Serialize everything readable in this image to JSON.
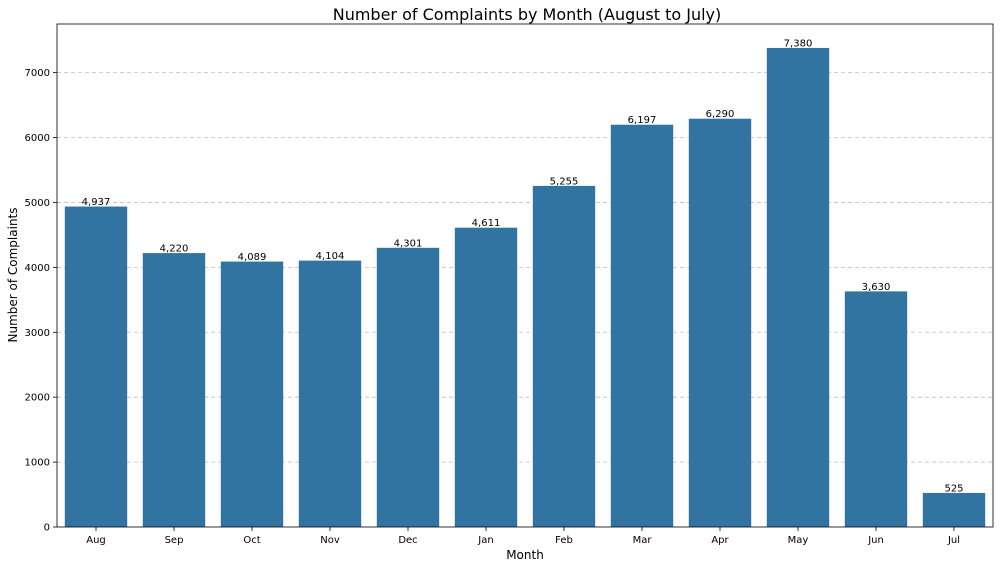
{
  "chart_data": {
    "type": "bar",
    "title": "Number of Complaints by Month (August to July)",
    "xlabel": "Month",
    "ylabel": "Number of Complaints",
    "categories": [
      "Aug",
      "Sep",
      "Oct",
      "Nov",
      "Dec",
      "Jan",
      "Feb",
      "Mar",
      "Apr",
      "May",
      "Jun",
      "Jul"
    ],
    "values": [
      4937,
      4220,
      4089,
      4104,
      4301,
      4611,
      5255,
      6197,
      6290,
      7380,
      3630,
      525
    ],
    "data_labels": [
      "4,937",
      "4,220",
      "4,089",
      "4,104",
      "4,301",
      "4,611",
      "5,255",
      "6,197",
      "6,290",
      "7,380",
      "3,630",
      "525"
    ],
    "ylim": [
      0,
      7749
    ],
    "yticks": [
      0,
      1000,
      2000,
      3000,
      4000,
      5000,
      6000,
      7000
    ],
    "ytick_labels": [
      "0",
      "1000",
      "2000",
      "3000",
      "4000",
      "5000",
      "6000",
      "7000"
    ],
    "grid": "y-dashed",
    "legend": "none",
    "bar_color": "#3274a1"
  }
}
